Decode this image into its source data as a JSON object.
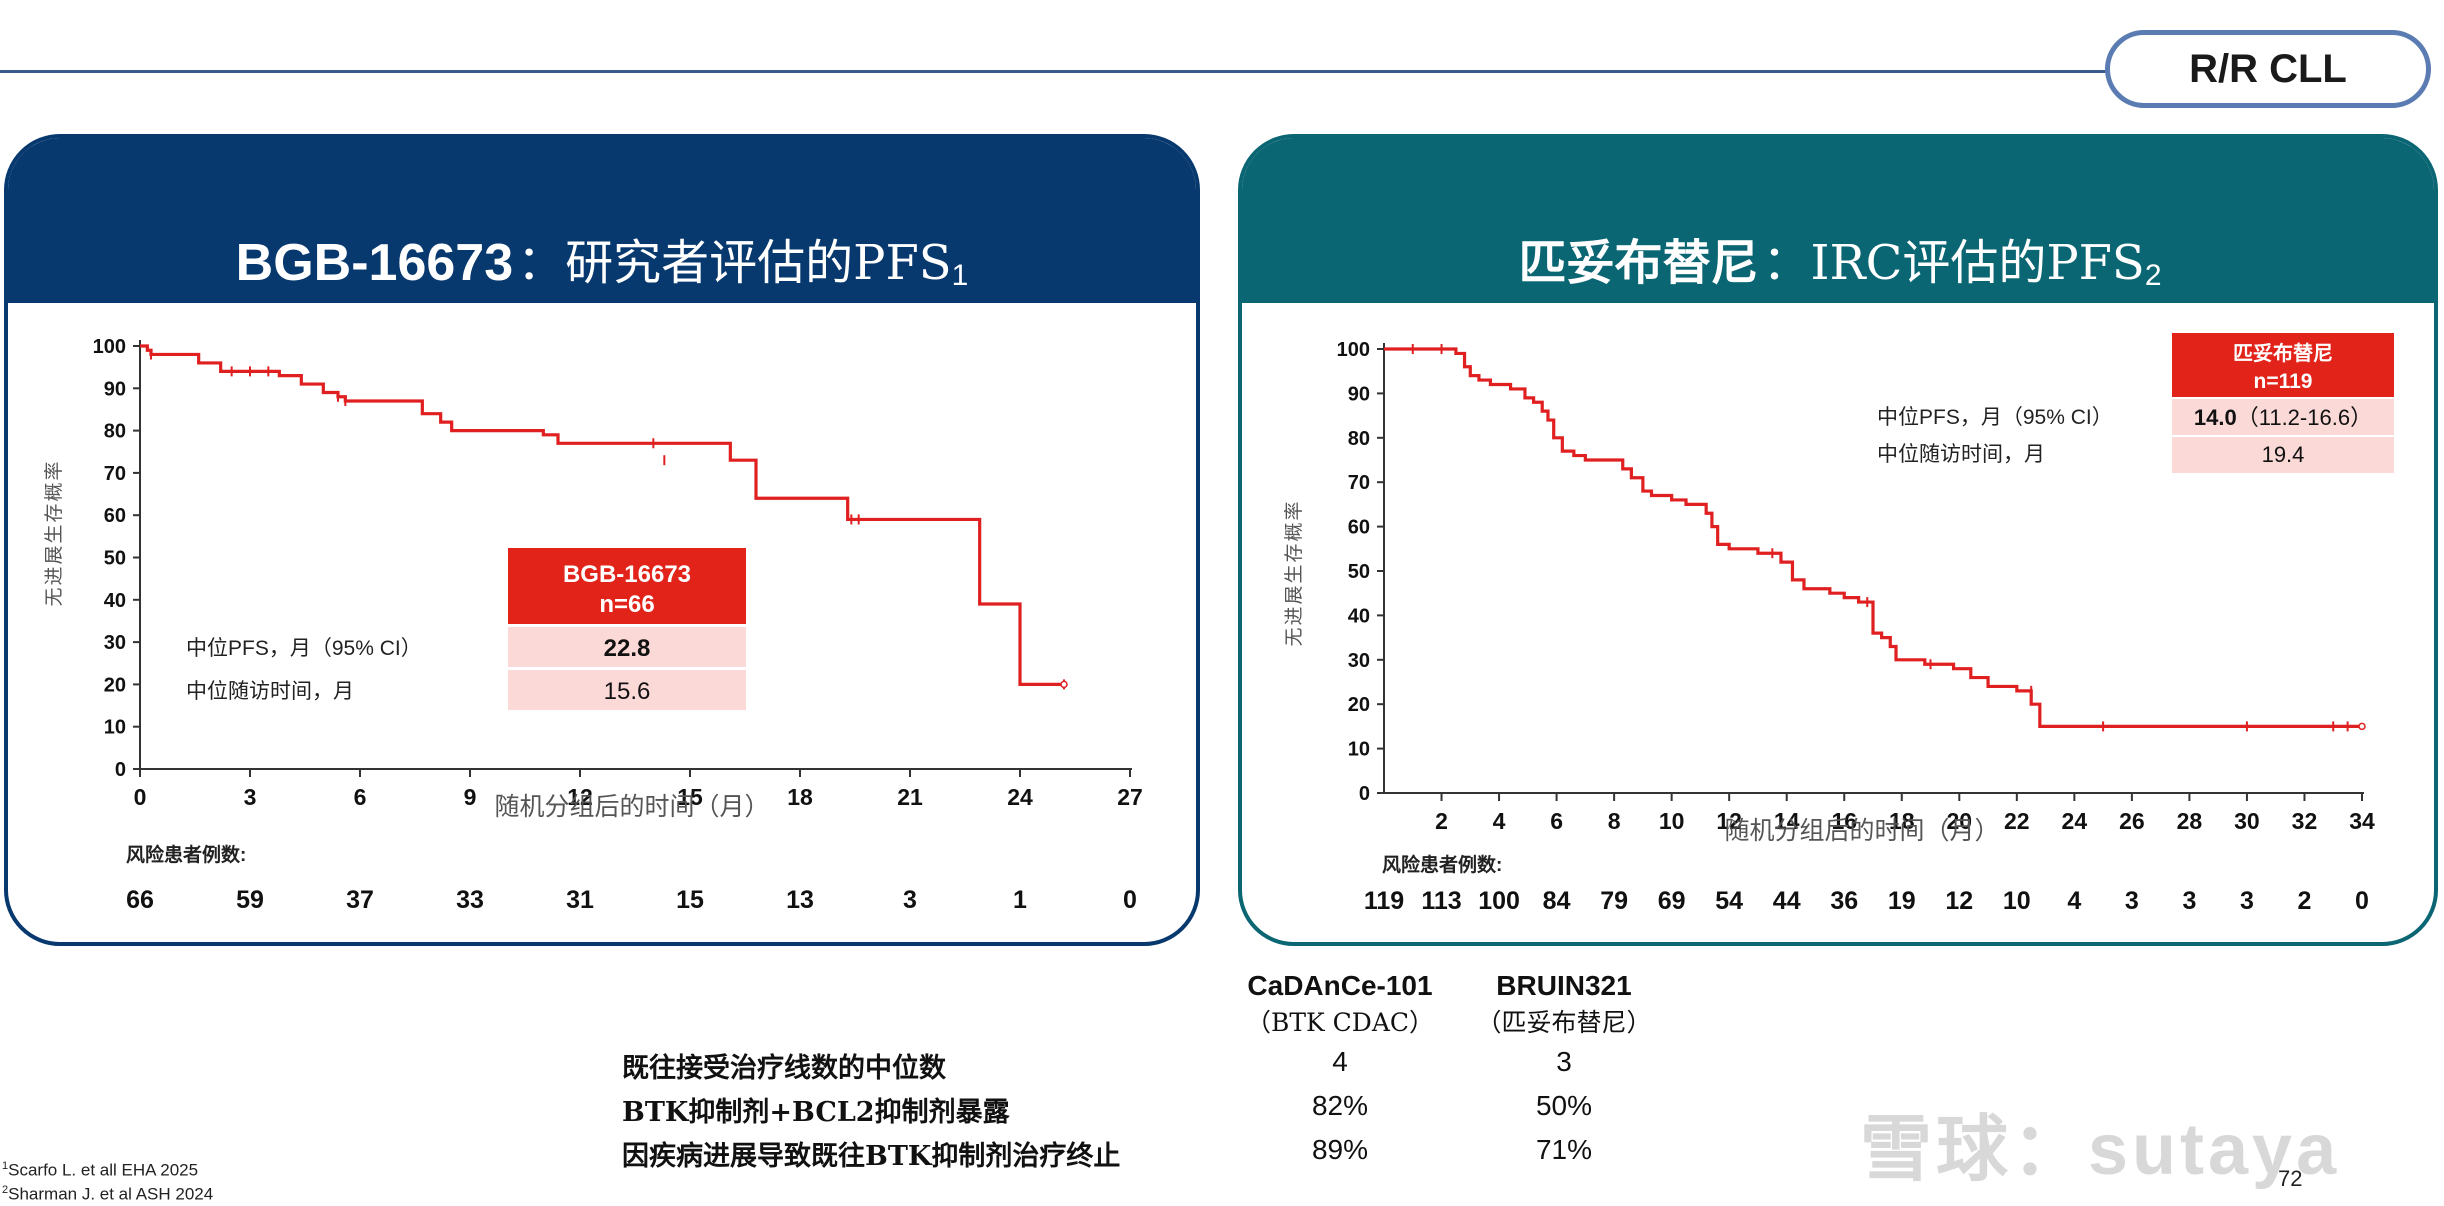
{
  "tag": "R/R CLL",
  "left_panel": {
    "title_bold": "BGB-16673",
    "title_rest": "：研究者评估的PFS",
    "title_sup": "1",
    "legend_name": "BGB-16673",
    "legend_n": "n=66",
    "row1_label": "中位PFS，月（95% CI）",
    "row1_value": "22.8",
    "row2_label": "中位随访时间，月",
    "row2_value": "15.6",
    "risk_label": "风险患者例数:",
    "risk_values": [
      "66",
      "59",
      "37",
      "33",
      "31",
      "15",
      "13",
      "3",
      "1",
      "0"
    ]
  },
  "right_panel": {
    "title_bold": "匹妥布替尼",
    "title_rest": "：IRC评估的PFS",
    "title_sup": "2",
    "legend_name": "匹妥布替尼",
    "legend_n": "n=119",
    "row1_label": "中位PFS，月（95% CI）",
    "row1_value_bold": "14.0",
    "row1_value_rest": "（11.2-16.6）",
    "row2_label": "中位随访时间，月",
    "row2_value": "19.4",
    "risk_label": "风险患者例数:",
    "risk_values": [
      "119",
      "113",
      "100",
      "84",
      "79",
      "69",
      "54",
      "44",
      "36",
      "19",
      "12",
      "10",
      "4",
      "3",
      "3",
      "3",
      "2",
      "0"
    ]
  },
  "comparison": {
    "columns": [
      {
        "name": "CaDAnCe-101",
        "sub": "（BTK CDAC）"
      },
      {
        "name": "BRUIN321",
        "sub": "（匹妥布替尼）"
      }
    ],
    "rows": [
      {
        "label": "既往接受治疗线数的中位数",
        "values": [
          "4",
          "3"
        ]
      },
      {
        "label": "BTK抑制剂+BCL2抑制剂暴露",
        "values": [
          "82%",
          "50%"
        ]
      },
      {
        "label": "因疾病进展导致既往BTK抑制剂治疗终止",
        "values": [
          "89%",
          "71%"
        ]
      }
    ]
  },
  "footnotes": {
    "n1_sup": "1",
    "n1": "Scarfo L. et all EHA 2025",
    "n2_sup": "2",
    "n2": "Sharman J. et al ASH 2024"
  },
  "page_number": "72",
  "watermark": "雪球：sutaya",
  "chart_data": [
    {
      "type": "line",
      "xlabel": "随机分组后的时间（月）",
      "ylabel": "无进展生存概率",
      "xlim": [
        0,
        27
      ],
      "ylim": [
        0,
        100
      ],
      "xticks": [
        0,
        3,
        6,
        9,
        12,
        15,
        18,
        21,
        24,
        27
      ],
      "yticks": [
        0,
        10,
        20,
        30,
        40,
        50,
        60,
        70,
        80,
        90,
        100
      ],
      "color": "#e02020",
      "step": true,
      "series": [
        {
          "x": [
            0,
            0.2,
            0.3,
            1.6,
            2.2,
            3.8,
            4.4,
            5.0,
            5.4,
            5.6,
            6.2,
            7.7,
            8.2,
            8.5,
            11.0,
            11.4,
            16.1,
            16.8,
            19.3,
            19.4,
            19.8,
            22.9,
            24.0,
            25.2
          ],
          "y": [
            100,
            99,
            98,
            96,
            94,
            93,
            91,
            89,
            88,
            87,
            87,
            84,
            82,
            80,
            79,
            77,
            73,
            64,
            59,
            59,
            59,
            39,
            20,
            20
          ]
        }
      ]
    },
    {
      "type": "line",
      "xlabel": "随机分组后的时间（月）",
      "ylabel": "无进展生存概率",
      "xlim": [
        0,
        34
      ],
      "ylim": [
        0,
        100
      ],
      "xticks": [
        2,
        4,
        6,
        8,
        10,
        12,
        14,
        16,
        18,
        20,
        22,
        24,
        26,
        28,
        30,
        32,
        34
      ],
      "yticks": [
        0,
        10,
        20,
        30,
        40,
        50,
        60,
        70,
        80,
        90,
        100
      ],
      "color": "#e02020",
      "step": true,
      "series": [
        {
          "x": [
            0,
            1.0,
            2.5,
            2.8,
            3.0,
            3.3,
            3.7,
            4.4,
            4.9,
            5.2,
            5.5,
            5.7,
            5.9,
            6.2,
            6.6,
            7.0,
            8.3,
            8.6,
            9.0,
            9.3,
            10.0,
            10.5,
            11.2,
            11.4,
            11.6,
            12.0,
            13.0,
            13.8,
            14.2,
            14.6,
            15.5,
            16.0,
            16.5,
            17.0,
            17.3,
            17.6,
            17.8,
            18.8,
            19.8,
            20.4,
            21.0,
            22.0,
            22.5,
            22.8,
            34
          ],
          "y": [
            100,
            100,
            99,
            96,
            94,
            93,
            92,
            91,
            89,
            88,
            86,
            84,
            80,
            77,
            76,
            75,
            73,
            71,
            68,
            67,
            66,
            65,
            63,
            60,
            56,
            55,
            54,
            52,
            48,
            46,
            45,
            44,
            43,
            36,
            35,
            33,
            30,
            29,
            28,
            26,
            24,
            23,
            20,
            15,
            15
          ]
        }
      ]
    }
  ]
}
